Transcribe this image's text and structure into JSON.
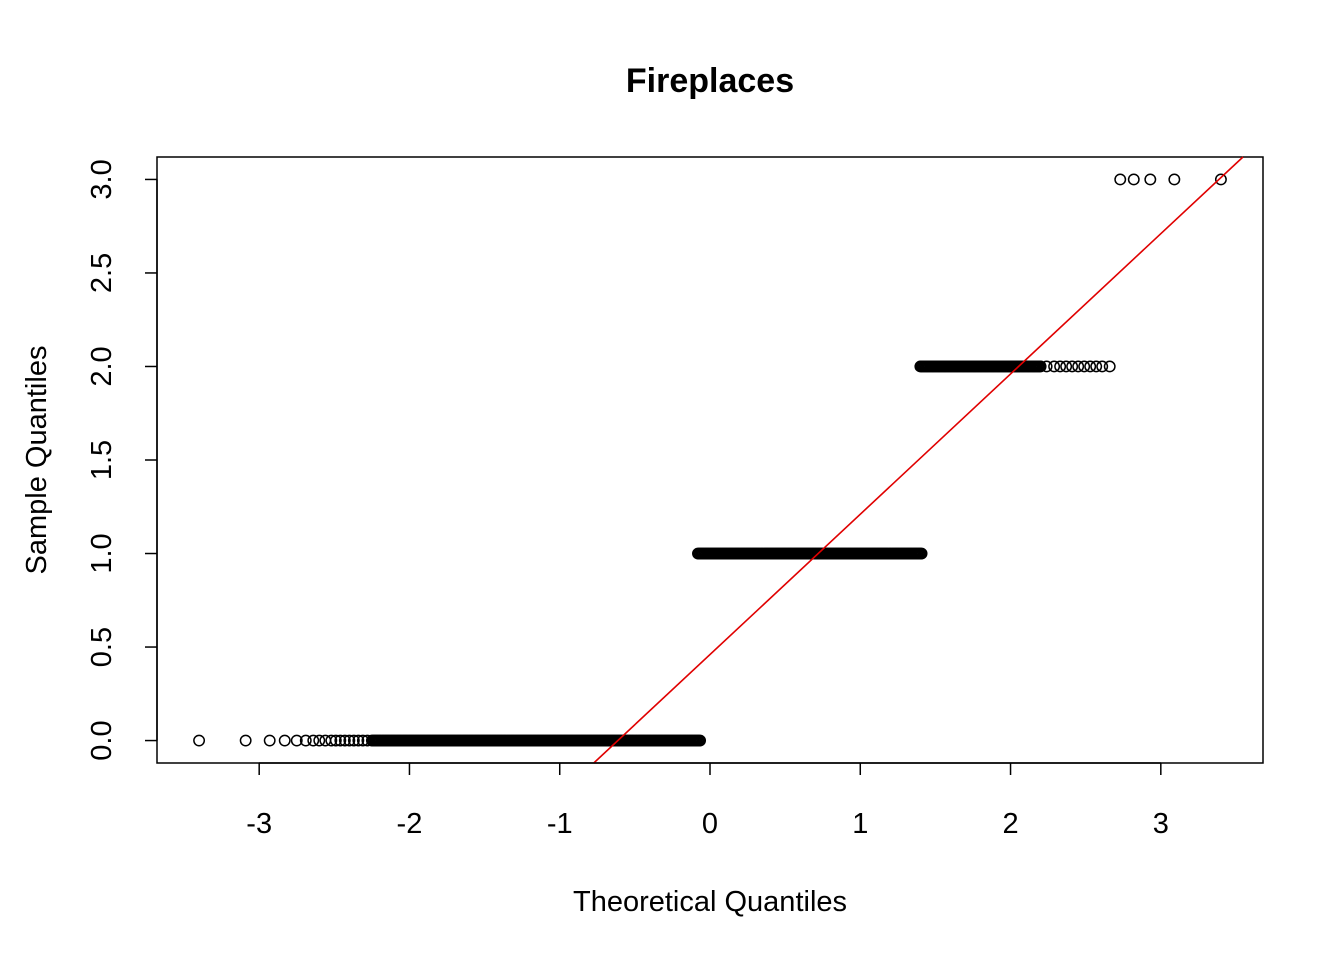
{
  "chart_data": {
    "type": "scatter",
    "title": "Fireplaces",
    "xlabel": "Theoretical Quantiles",
    "ylabel": "Sample Quantiles",
    "xlim": [
      -3.68,
      3.68
    ],
    "ylim": [
      -0.12,
      3.12
    ],
    "x_ticks": [
      -3,
      -2,
      -1,
      0,
      1,
      2,
      3
    ],
    "x_tick_labels": [
      "-3",
      "-2",
      "-1",
      "0",
      "1",
      "2",
      "3"
    ],
    "y_ticks": [
      0.0,
      0.5,
      1.0,
      1.5,
      2.0,
      2.5,
      3.0
    ],
    "y_tick_labels": [
      "0.0",
      "0.5",
      "1.0",
      "1.5",
      "2.0",
      "2.5",
      "3.0"
    ],
    "grid": false,
    "legend": "none",
    "colors": {
      "points": "#000000",
      "reference_line": "#e00000"
    },
    "point_groups": [
      {
        "y": 0,
        "x_dense": [
          -2.25,
          -0.06
        ],
        "x_sparse": [
          -3.4,
          -3.09,
          -2.93,
          -2.83,
          -2.75,
          -2.69,
          -2.64,
          -2.6,
          -2.56,
          -2.52,
          -2.49,
          -2.46,
          -2.43,
          -2.4,
          -2.37,
          -2.34,
          -2.31,
          -2.28
        ]
      },
      {
        "y": 1,
        "x_dense": [
          -0.08,
          1.41
        ],
        "x_sparse": []
      },
      {
        "y": 2,
        "x_dense": [
          1.4,
          2.2
        ],
        "x_sparse": [
          2.24,
          2.29,
          2.33,
          2.37,
          2.41,
          2.45,
          2.49,
          2.53,
          2.57,
          2.61,
          2.66
        ]
      },
      {
        "y": 3,
        "x_dense": [],
        "x_sparse": [
          2.73,
          2.82,
          2.93,
          3.09,
          3.4
        ]
      }
    ],
    "reference_line": {
      "intercept": 0.46,
      "slope": 0.75
    }
  }
}
